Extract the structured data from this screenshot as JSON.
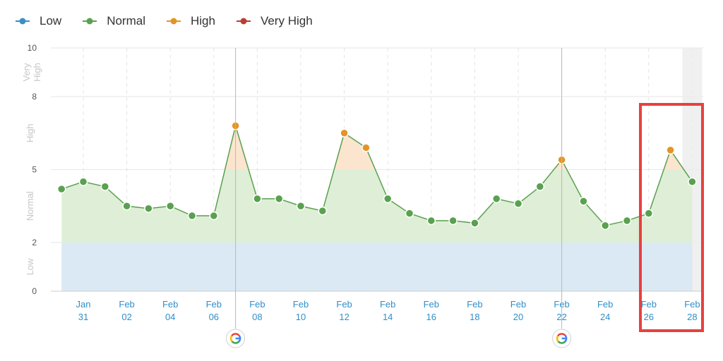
{
  "legend": [
    {
      "label": "Low",
      "color": "#3b8fc4"
    },
    {
      "label": "Normal",
      "color": "#59a14f"
    },
    {
      "label": "High",
      "color": "#e39426"
    },
    {
      "label": "Very High",
      "color": "#b93e33"
    }
  ],
  "chart_data": {
    "type": "area",
    "y_ticks": [
      0,
      2,
      5,
      8,
      10
    ],
    "ylim": [
      0,
      10
    ],
    "zones": [
      {
        "label": "Low",
        "from": 0,
        "to": 2,
        "color": "#dbe9f4"
      },
      {
        "label": "Normal",
        "from": 2,
        "to": 5,
        "color": "#dfeed6"
      },
      {
        "label": "High",
        "from": 5,
        "to": 8,
        "color": "#fbe5cf"
      },
      {
        "label": "Very High",
        "from": 8,
        "to": 10,
        "color": "#f6d9d6"
      }
    ],
    "x_ticks": [
      {
        "month": "Jan",
        "day": "31",
        "date": "2019-01-31"
      },
      {
        "month": "Feb",
        "day": "02",
        "date": "2019-02-02"
      },
      {
        "month": "Feb",
        "day": "04",
        "date": "2019-02-04"
      },
      {
        "month": "Feb",
        "day": "06",
        "date": "2019-02-06"
      },
      {
        "month": "Feb",
        "day": "08",
        "date": "2019-02-08"
      },
      {
        "month": "Feb",
        "day": "10",
        "date": "2019-02-10"
      },
      {
        "month": "Feb",
        "day": "12",
        "date": "2019-02-12"
      },
      {
        "month": "Feb",
        "day": "14",
        "date": "2019-02-14"
      },
      {
        "month": "Feb",
        "day": "16",
        "date": "2019-02-16"
      },
      {
        "month": "Feb",
        "day": "18",
        "date": "2019-02-18"
      },
      {
        "month": "Feb",
        "day": "20",
        "date": "2019-02-20"
      },
      {
        "month": "Feb",
        "day": "22",
        "date": "2019-02-22"
      },
      {
        "month": "Feb",
        "day": "24",
        "date": "2019-02-24"
      },
      {
        "month": "Feb",
        "day": "26",
        "date": "2019-02-26"
      },
      {
        "month": "Feb",
        "day": "28",
        "date": "2019-02-28"
      }
    ],
    "series": [
      {
        "dates": [
          "2019-01-30",
          "2019-01-31",
          "2019-02-01",
          "2019-02-02",
          "2019-02-03",
          "2019-02-04",
          "2019-02-05",
          "2019-02-06",
          "2019-02-07",
          "2019-02-08",
          "2019-02-09",
          "2019-02-10",
          "2019-02-11",
          "2019-02-12",
          "2019-02-13",
          "2019-02-14",
          "2019-02-15",
          "2019-02-16",
          "2019-02-17",
          "2019-02-18",
          "2019-02-19",
          "2019-02-20",
          "2019-02-21",
          "2019-02-22",
          "2019-02-23",
          "2019-02-24",
          "2019-02-25",
          "2019-02-26",
          "2019-02-27",
          "2019-02-28"
        ],
        "values": [
          4.2,
          4.5,
          4.3,
          3.5,
          3.4,
          3.5,
          3.1,
          3.1,
          6.8,
          3.8,
          3.8,
          3.5,
          3.3,
          6.5,
          5.9,
          3.8,
          3.2,
          2.9,
          2.9,
          2.8,
          3.8,
          3.6,
          4.3,
          5.4,
          3.7,
          2.7,
          2.9,
          3.2,
          5.8,
          4.5
        ]
      }
    ],
    "google_update_markers": [
      "2019-02-07",
      "2019-02-22"
    ],
    "highlight_box": {
      "from": "2019-02-26",
      "to": "2019-02-28"
    },
    "shaded_date": "2019-02-28"
  }
}
